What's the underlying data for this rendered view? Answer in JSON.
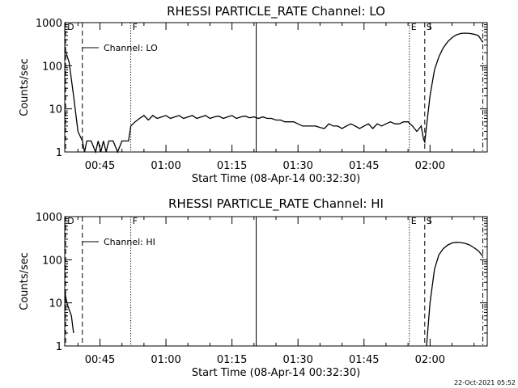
{
  "footer": {
    "timestamp": "22-Oct-2021 05:52"
  },
  "chart_data": [
    {
      "type": "line",
      "title": "RHESSI PARTICLE_RATE Channel: LO",
      "xlabel": "Start Time (08-Apr-14 00:32:30)",
      "ylabel": "Counts/sec",
      "yscale": "log",
      "ylim": [
        1,
        1000
      ],
      "y_ticks": [
        "1",
        "10",
        "100",
        "1000"
      ],
      "x_ticks": [
        "00:45",
        "01:00",
        "01:15",
        "01:30",
        "01:45",
        "02:00"
      ],
      "xlim_minutes": [
        37,
        133
      ],
      "legend": "Channel: LO",
      "markers": [
        {
          "label": "D",
          "minute": 37.2,
          "style": "dashed"
        },
        {
          "label": "",
          "minute": 41.0,
          "style": "dashed"
        },
        {
          "label": "F",
          "minute": 52.0,
          "style": "dotted"
        },
        {
          "label": "",
          "minute": 80.5,
          "style": "solid"
        },
        {
          "label": "E",
          "minute": 115.3,
          "style": "dotted"
        },
        {
          "label": "S",
          "minute": 118.8,
          "style": "dashed"
        },
        {
          "label": "",
          "minute": 132.0,
          "style": "dashdot"
        }
      ],
      "series": [
        {
          "segments": [
            [
              [
                37,
                250
              ],
              [
                38,
                120
              ],
              [
                39,
                20
              ],
              [
                40,
                3
              ],
              [
                41,
                1.8
              ],
              [
                41.5,
                1
              ],
              [
                42,
                1.8
              ],
              [
                43,
                1.8
              ],
              [
                44,
                1
              ],
              [
                44.6,
                1.8
              ],
              [
                45.2,
                1
              ],
              [
                45.8,
                1.8
              ],
              [
                46.4,
                1
              ],
              [
                47,
                1.8
              ],
              [
                48,
                1.8
              ],
              [
                49,
                1
              ],
              [
                50,
                1.8
              ],
              [
                51.5,
                1.8
              ],
              [
                52,
                4
              ],
              [
                53,
                5
              ],
              [
                54,
                6
              ],
              [
                55,
                7
              ],
              [
                56,
                5.5
              ],
              [
                57,
                7
              ],
              [
                58,
                6
              ],
              [
                59,
                6.5
              ],
              [
                60,
                7
              ],
              [
                61,
                6
              ],
              [
                62,
                6.5
              ],
              [
                63,
                7
              ],
              [
                64,
                6
              ],
              [
                65,
                6.5
              ],
              [
                66,
                7
              ],
              [
                67,
                6
              ],
              [
                68,
                6.5
              ],
              [
                69,
                7
              ],
              [
                70,
                6
              ],
              [
                71,
                6.5
              ],
              [
                72,
                6.8
              ],
              [
                73,
                6
              ],
              [
                74,
                6.5
              ],
              [
                75,
                7
              ],
              [
                76,
                6
              ],
              [
                77,
                6.5
              ],
              [
                78,
                6.8
              ],
              [
                79,
                6.2
              ],
              [
                80,
                6.5
              ],
              [
                81,
                6
              ],
              [
                82,
                6.5
              ],
              [
                83,
                6
              ],
              [
                84,
                6
              ],
              [
                85,
                5.5
              ],
              [
                86,
                5.5
              ],
              [
                87,
                5
              ],
              [
                88,
                5
              ],
              [
                89,
                5
              ],
              [
                90,
                4.5
              ],
              [
                91,
                4
              ],
              [
                92,
                4
              ],
              [
                93,
                4
              ],
              [
                94,
                4
              ],
              [
                95,
                3.7
              ],
              [
                96,
                3.5
              ],
              [
                97,
                4.5
              ],
              [
                98,
                4
              ],
              [
                99,
                4
              ],
              [
                100,
                3.5
              ],
              [
                101,
                4
              ],
              [
                102,
                4.5
              ],
              [
                103,
                4
              ],
              [
                104,
                3.5
              ],
              [
                105,
                4
              ],
              [
                106,
                4.5
              ],
              [
                107,
                3.5
              ],
              [
                108,
                4.5
              ],
              [
                109,
                4
              ],
              [
                110,
                4.5
              ],
              [
                111,
                5
              ],
              [
                112,
                4.5
              ],
              [
                113,
                4.5
              ],
              [
                114,
                5
              ],
              [
                115,
                5
              ],
              [
                116,
                4
              ],
              [
                117,
                3
              ],
              [
                118,
                4
              ],
              [
                118.5,
                2
              ],
              [
                118.8,
                1.7
              ],
              [
                119.2,
                4
              ],
              [
                120,
                20
              ],
              [
                121,
                80
              ],
              [
                122,
                160
              ],
              [
                123,
                260
              ],
              [
                124,
                360
              ],
              [
                125,
                450
              ],
              [
                126,
                520
              ],
              [
                127,
                560
              ],
              [
                128,
                570
              ],
              [
                129,
                560
              ],
              [
                130,
                540
              ],
              [
                131,
                500
              ],
              [
                132,
                350
              ]
            ]
          ]
        }
      ]
    },
    {
      "type": "line",
      "title": "RHESSI PARTICLE_RATE Channel: HI",
      "xlabel": "Start Time (08-Apr-14 00:32:30)",
      "ylabel": "Counts/sec",
      "yscale": "log",
      "ylim": [
        1,
        1000
      ],
      "y_ticks": [
        "1",
        "10",
        "100",
        "1000"
      ],
      "x_ticks": [
        "00:45",
        "01:00",
        "01:15",
        "01:30",
        "01:45",
        "02:00"
      ],
      "xlim_minutes": [
        37,
        133
      ],
      "legend": "Channel: HI",
      "markers": [
        {
          "label": "D",
          "minute": 37.2,
          "style": "dashed"
        },
        {
          "label": "",
          "minute": 41.0,
          "style": "dashed"
        },
        {
          "label": "F",
          "minute": 52.0,
          "style": "dotted"
        },
        {
          "label": "",
          "minute": 80.5,
          "style": "solid"
        },
        {
          "label": "E",
          "minute": 115.3,
          "style": "dotted"
        },
        {
          "label": "S",
          "minute": 118.8,
          "style": "dashed"
        },
        {
          "label": "",
          "minute": 132.0,
          "style": "dashdot"
        }
      ],
      "series": [
        {
          "segments": [
            [
              [
                37,
                18
              ],
              [
                37.5,
                10
              ],
              [
                38,
                7
              ],
              [
                38.5,
                5
              ],
              [
                39,
                2
              ]
            ],
            [
              [
                119.2,
                1
              ],
              [
                120,
                10
              ],
              [
                121,
                60
              ],
              [
                122,
                130
              ],
              [
                123,
                180
              ],
              [
                124,
                220
              ],
              [
                125,
                245
              ],
              [
                126,
                255
              ],
              [
                127,
                250
              ],
              [
                128,
                240
              ],
              [
                129,
                220
              ],
              [
                130,
                190
              ],
              [
                131,
                160
              ],
              [
                132,
                120
              ]
            ]
          ]
        }
      ]
    }
  ]
}
